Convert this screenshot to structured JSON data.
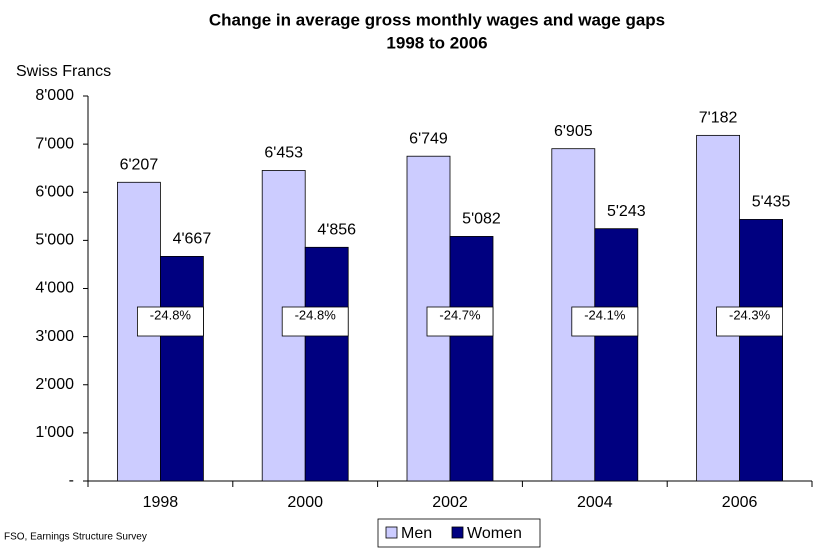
{
  "chart_data": {
    "type": "bar",
    "title": "Change in average gross monthly wages and wage gaps",
    "subtitle": "1998 to 2006",
    "y_label": "Swiss Francs",
    "categories": [
      "1998",
      "2000",
      "2002",
      "2004",
      "2006"
    ],
    "series": [
      {
        "name": "Men",
        "color": "#ccccff",
        "values": [
          6207,
          6453,
          6749,
          6905,
          7182
        ],
        "value_labels": [
          "6'207",
          "6'453",
          "6'749",
          "6'905",
          "7'182"
        ]
      },
      {
        "name": "Women",
        "color": "#000080",
        "values": [
          4667,
          4856,
          5082,
          5243,
          5435
        ],
        "value_labels": [
          "4'667",
          "4'856",
          "5'082",
          "5'243",
          "5'435"
        ]
      }
    ],
    "annotations": [
      "-24.8%",
      "-24.8%",
      "-24.7%",
      "-24.1%",
      "-24.3%"
    ],
    "ylim": [
      0,
      8000
    ],
    "yticks": [
      {
        "value": 0,
        "label": "-"
      },
      {
        "value": 1000,
        "label": "1'000"
      },
      {
        "value": 2000,
        "label": "2'000"
      },
      {
        "value": 3000,
        "label": "3'000"
      },
      {
        "value": 4000,
        "label": "4'000"
      },
      {
        "value": 5000,
        "label": "5'000"
      },
      {
        "value": 6000,
        "label": "6'000"
      },
      {
        "value": 7000,
        "label": "7'000"
      },
      {
        "value": 8000,
        "label": "8'000"
      }
    ],
    "grid": false,
    "legend": "bottom",
    "source": "FSO, Earnings Structure Survey"
  }
}
